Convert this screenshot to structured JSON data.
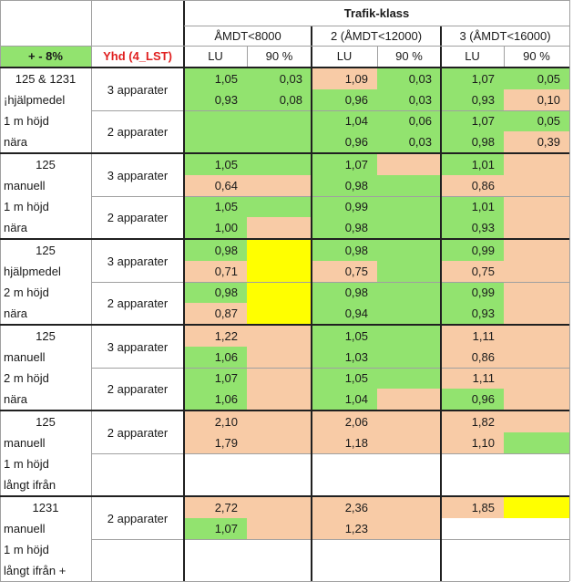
{
  "colors": {
    "green": "#92e36f",
    "peach": "#f8cba6",
    "yellow": "#ffff00",
    "white": "#ffffff",
    "header_green": "#92e36f",
    "yhd_red": "#e02020",
    "grid_line": "#a0a0a0",
    "thick_line": "#202020"
  },
  "header": {
    "title": "Trafik-klass",
    "class_labels": [
      "ÅMDT<8000",
      "2 (ÅMDT<12000)",
      "3 (ÅMDT<16000)"
    ],
    "tolerance_label": "+ - 8%",
    "yhd_label": "Yhd (4_LST)",
    "lu_label": "LU",
    "p90_label": "90 %"
  },
  "groups": [
    {
      "labels": [
        "125 & 1231",
        "¡hjälpmedel",
        "1 m höjd",
        "nära"
      ],
      "label_centered": [
        true,
        false,
        false,
        false
      ],
      "blocks": [
        {
          "label": "3 apparater",
          "rows": [
            {
              "cells": [
                {
                  "v": "1,05",
                  "c": "green"
                },
                {
                  "v": "0,03",
                  "c": "green"
                },
                {
                  "v": "1,09",
                  "c": "peach"
                },
                {
                  "v": "0,03",
                  "c": "green"
                },
                {
                  "v": "1,07",
                  "c": "green"
                },
                {
                  "v": "0,05",
                  "c": "green"
                }
              ]
            },
            {
              "cells": [
                {
                  "v": "0,93",
                  "c": "green"
                },
                {
                  "v": "0,08",
                  "c": "green"
                },
                {
                  "v": "0,96",
                  "c": "green"
                },
                {
                  "v": "0,03",
                  "c": "green"
                },
                {
                  "v": "0,93",
                  "c": "green"
                },
                {
                  "v": "0,10",
                  "c": "peach"
                }
              ]
            }
          ]
        },
        {
          "label": "2 apparater",
          "rows": [
            {
              "cells": [
                {
                  "v": "",
                  "c": "green"
                },
                {
                  "v": "",
                  "c": "green"
                },
                {
                  "v": "1,04",
                  "c": "green"
                },
                {
                  "v": "0,06",
                  "c": "green"
                },
                {
                  "v": "1,07",
                  "c": "green"
                },
                {
                  "v": "0,05",
                  "c": "green"
                }
              ]
            },
            {
              "cells": [
                {
                  "v": "",
                  "c": "green"
                },
                {
                  "v": "",
                  "c": "green"
                },
                {
                  "v": "0,96",
                  "c": "green"
                },
                {
                  "v": "0,03",
                  "c": "green"
                },
                {
                  "v": "0,98",
                  "c": "green"
                },
                {
                  "v": "0,39",
                  "c": "peach"
                }
              ]
            }
          ]
        }
      ]
    },
    {
      "labels": [
        "125",
        "manuell",
        "1 m höjd",
        "nära"
      ],
      "label_centered": [
        true,
        false,
        false,
        false
      ],
      "blocks": [
        {
          "label": "3 apparater",
          "rows": [
            {
              "cells": [
                {
                  "v": "1,05",
                  "c": "green"
                },
                {
                  "v": "",
                  "c": "green"
                },
                {
                  "v": "1,07",
                  "c": "green"
                },
                {
                  "v": "",
                  "c": "peach"
                },
                {
                  "v": "1,01",
                  "c": "green"
                },
                {
                  "v": "",
                  "c": "peach"
                }
              ]
            },
            {
              "cells": [
                {
                  "v": "0,64",
                  "c": "peach"
                },
                {
                  "v": "",
                  "c": "peach"
                },
                {
                  "v": "0,98",
                  "c": "green"
                },
                {
                  "v": "",
                  "c": "green"
                },
                {
                  "v": "0,86",
                  "c": "peach"
                },
                {
                  "v": "",
                  "c": "peach"
                }
              ]
            }
          ]
        },
        {
          "label": "2 apparater",
          "rows": [
            {
              "cells": [
                {
                  "v": "1,05",
                  "c": "green"
                },
                {
                  "v": "",
                  "c": "green"
                },
                {
                  "v": "0,99",
                  "c": "green"
                },
                {
                  "v": "",
                  "c": "green"
                },
                {
                  "v": "1,01",
                  "c": "green"
                },
                {
                  "v": "",
                  "c": "peach"
                }
              ]
            },
            {
              "cells": [
                {
                  "v": "1,00",
                  "c": "green"
                },
                {
                  "v": "",
                  "c": "peach"
                },
                {
                  "v": "0,98",
                  "c": "green"
                },
                {
                  "v": "",
                  "c": "green"
                },
                {
                  "v": "0,93",
                  "c": "green"
                },
                {
                  "v": "",
                  "c": "peach"
                }
              ]
            }
          ]
        }
      ]
    },
    {
      "labels": [
        "125",
        "hjälpmedel",
        "2 m höjd",
        "nära"
      ],
      "label_centered": [
        true,
        false,
        false,
        false
      ],
      "blocks": [
        {
          "label": "3 apparater",
          "rows": [
            {
              "cells": [
                {
                  "v": "0,98",
                  "c": "green"
                },
                {
                  "v": "",
                  "c": "yellow"
                },
                {
                  "v": "0,98",
                  "c": "green"
                },
                {
                  "v": "",
                  "c": "green"
                },
                {
                  "v": "0,99",
                  "c": "green"
                },
                {
                  "v": "",
                  "c": "peach"
                }
              ]
            },
            {
              "cells": [
                {
                  "v": "0,71",
                  "c": "peach"
                },
                {
                  "v": "",
                  "c": "yellow"
                },
                {
                  "v": "0,75",
                  "c": "peach"
                },
                {
                  "v": "",
                  "c": "green"
                },
                {
                  "v": "0,75",
                  "c": "peach"
                },
                {
                  "v": "",
                  "c": "peach"
                }
              ]
            }
          ]
        },
        {
          "label": "2 apparater",
          "rows": [
            {
              "cells": [
                {
                  "v": "0,98",
                  "c": "green"
                },
                {
                  "v": "",
                  "c": "yellow"
                },
                {
                  "v": "0,98",
                  "c": "green"
                },
                {
                  "v": "",
                  "c": "green"
                },
                {
                  "v": "0,99",
                  "c": "green"
                },
                {
                  "v": "",
                  "c": "peach"
                }
              ]
            },
            {
              "cells": [
                {
                  "v": "0,87",
                  "c": "peach"
                },
                {
                  "v": "",
                  "c": "yellow"
                },
                {
                  "v": "0,94",
                  "c": "green"
                },
                {
                  "v": "",
                  "c": "green"
                },
                {
                  "v": "0,93",
                  "c": "green"
                },
                {
                  "v": "",
                  "c": "peach"
                }
              ]
            }
          ]
        }
      ]
    },
    {
      "labels": [
        "125",
        "manuell",
        "2 m höjd",
        "nära"
      ],
      "label_centered": [
        true,
        false,
        false,
        false
      ],
      "blocks": [
        {
          "label": "3 apparater",
          "rows": [
            {
              "cells": [
                {
                  "v": "1,22",
                  "c": "peach"
                },
                {
                  "v": "",
                  "c": "peach"
                },
                {
                  "v": "1,05",
                  "c": "green"
                },
                {
                  "v": "",
                  "c": "green"
                },
                {
                  "v": "1,11",
                  "c": "peach"
                },
                {
                  "v": "",
                  "c": "peach"
                }
              ]
            },
            {
              "cells": [
                {
                  "v": "1,06",
                  "c": "green"
                },
                {
                  "v": "",
                  "c": "peach"
                },
                {
                  "v": "1,03",
                  "c": "green"
                },
                {
                  "v": "",
                  "c": "green"
                },
                {
                  "v": "0,86",
                  "c": "peach"
                },
                {
                  "v": "",
                  "c": "peach"
                }
              ]
            }
          ]
        },
        {
          "label": "2 apparater",
          "rows": [
            {
              "cells": [
                {
                  "v": "1,07",
                  "c": "green"
                },
                {
                  "v": "",
                  "c": "peach"
                },
                {
                  "v": "1,05",
                  "c": "green"
                },
                {
                  "v": "",
                  "c": "green"
                },
                {
                  "v": "1,11",
                  "c": "peach"
                },
                {
                  "v": "",
                  "c": "peach"
                }
              ]
            },
            {
              "cells": [
                {
                  "v": "1,06",
                  "c": "green"
                },
                {
                  "v": "",
                  "c": "peach"
                },
                {
                  "v": "1,04",
                  "c": "green"
                },
                {
                  "v": "",
                  "c": "peach"
                },
                {
                  "v": "0,96",
                  "c": "green"
                },
                {
                  "v": "",
                  "c": "peach"
                }
              ]
            }
          ]
        }
      ]
    },
    {
      "labels": [
        "125",
        "manuell",
        "1 m höjd",
        "långt ifrån"
      ],
      "label_centered": [
        true,
        false,
        false,
        false
      ],
      "blocks": [
        {
          "label": "2 apparater",
          "rows": [
            {
              "cells": [
                {
                  "v": "2,10",
                  "c": "peach"
                },
                {
                  "v": "",
                  "c": "peach"
                },
                {
                  "v": "2,06",
                  "c": "peach"
                },
                {
                  "v": "",
                  "c": "peach"
                },
                {
                  "v": "1,82",
                  "c": "peach"
                },
                {
                  "v": "",
                  "c": "peach"
                }
              ]
            },
            {
              "cells": [
                {
                  "v": "1,79",
                  "c": "peach"
                },
                {
                  "v": "",
                  "c": "peach"
                },
                {
                  "v": "1,18",
                  "c": "peach"
                },
                {
                  "v": "",
                  "c": "peach"
                },
                {
                  "v": "1,10",
                  "c": "peach"
                },
                {
                  "v": "",
                  "c": "green"
                }
              ]
            }
          ]
        },
        {
          "label": "",
          "rows": [
            {
              "cells": [
                {
                  "v": "",
                  "c": "white"
                },
                {
                  "v": "",
                  "c": "white"
                },
                {
                  "v": "",
                  "c": "white"
                },
                {
                  "v": "",
                  "c": "white"
                },
                {
                  "v": "",
                  "c": "white"
                },
                {
                  "v": "",
                  "c": "white"
                }
              ]
            },
            {
              "cells": [
                {
                  "v": "",
                  "c": "white"
                },
                {
                  "v": "",
                  "c": "white"
                },
                {
                  "v": "",
                  "c": "white"
                },
                {
                  "v": "",
                  "c": "white"
                },
                {
                  "v": "",
                  "c": "white"
                },
                {
                  "v": "",
                  "c": "white"
                }
              ]
            }
          ]
        }
      ]
    },
    {
      "labels": [
        "1231",
        "manuell",
        "1 m höjd",
        "långt ifrån +"
      ],
      "label_centered": [
        true,
        false,
        false,
        false
      ],
      "blocks": [
        {
          "label": "2 apparater",
          "rows": [
            {
              "cells": [
                {
                  "v": "2,72",
                  "c": "peach"
                },
                {
                  "v": "",
                  "c": "peach"
                },
                {
                  "v": "2,36",
                  "c": "peach"
                },
                {
                  "v": "",
                  "c": "peach"
                },
                {
                  "v": "1,85",
                  "c": "peach"
                },
                {
                  "v": "",
                  "c": "yellow"
                }
              ]
            },
            {
              "cells": [
                {
                  "v": "1,07",
                  "c": "green"
                },
                {
                  "v": "",
                  "c": "peach"
                },
                {
                  "v": "1,23",
                  "c": "peach"
                },
                {
                  "v": "",
                  "c": "peach"
                },
                {
                  "v": "",
                  "c": "white"
                },
                {
                  "v": "",
                  "c": "white"
                }
              ]
            }
          ]
        },
        {
          "label": "",
          "rows": [
            {
              "cells": [
                {
                  "v": "",
                  "c": "white"
                },
                {
                  "v": "",
                  "c": "white"
                },
                {
                  "v": "",
                  "c": "white"
                },
                {
                  "v": "",
                  "c": "white"
                },
                {
                  "v": "",
                  "c": "white"
                },
                {
                  "v": "",
                  "c": "white"
                }
              ]
            },
            {
              "cells": [
                {
                  "v": "",
                  "c": "white"
                },
                {
                  "v": "",
                  "c": "white"
                },
                {
                  "v": "",
                  "c": "white"
                },
                {
                  "v": "",
                  "c": "white"
                },
                {
                  "v": "",
                  "c": "white"
                },
                {
                  "v": "",
                  "c": "white"
                }
              ]
            }
          ]
        }
      ]
    }
  ]
}
